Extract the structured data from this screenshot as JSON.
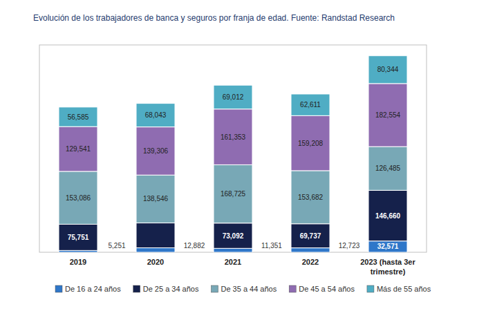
{
  "chart_data": {
    "type": "bar",
    "title": "Evolución de los trabajadores de banca y seguros por franja de edad. Fuente: Randstad Research",
    "categories": [
      "2019",
      "2020",
      "2021",
      "2022",
      "2023 (hasta 3er trimestre)"
    ],
    "stacked": true,
    "data_labels": true,
    "tick_labels": "x",
    "grid": false,
    "legend": "bottom",
    "ylim": [
      0,
      600000
    ],
    "series": [
      {
        "name": "De 16 a 24 años",
        "color": "#2f77c9",
        "values": [
          5251,
          12882,
          11351,
          12723,
          32571
        ],
        "value_labels": [
          "5,251",
          "12,882",
          "11,351",
          "12,723",
          "32,571"
        ]
      },
      {
        "name": "De 25 a 34 años",
        "color": "#15214b",
        "values": [
          75751,
          72000,
          73092,
          69737,
          146660
        ],
        "value_labels": [
          "75,751",
          null,
          "73,092",
          "69,737",
          "146,660"
        ]
      },
      {
        "name": "De 35 a 44 años",
        "color": "#78a8b6",
        "values": [
          153086,
          138546,
          168725,
          153682,
          126485
        ],
        "value_labels": [
          "153,086",
          "138,546",
          "168,725",
          "153,682",
          "126,485"
        ]
      },
      {
        "name": "De 45 a 54 años",
        "color": "#8f6cb1",
        "values": [
          129541,
          139306,
          161353,
          159208,
          182554
        ],
        "value_labels": [
          "129,541",
          "139,306",
          "161,353",
          "159,208",
          "182,554"
        ]
      },
      {
        "name": "Más de 55 años",
        "color": "#4fadc4",
        "values": [
          56585,
          68043,
          69012,
          62611,
          80344
        ],
        "value_labels": [
          "56,585",
          "68,043",
          "69,012",
          "62,611",
          "80,344"
        ]
      }
    ]
  }
}
